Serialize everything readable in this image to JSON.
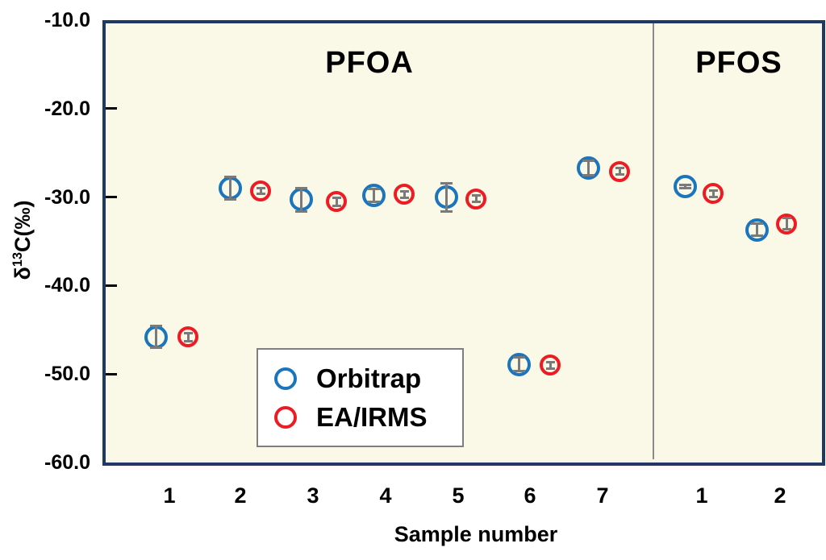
{
  "figure": {
    "background_color": "#FFFFFF",
    "plot_background_color": "#FAF8E6",
    "border_color": "#1F3864",
    "divider_color": "#8A8A8A",
    "error_bar_color": "#7A7A7A",
    "y_axis": {
      "title_prefix": "δ",
      "title_sup": "13",
      "title_suffix": "C(‰)",
      "tick_labels": [
        "-10.0",
        "-20.0",
        "-30.0",
        "-40.0",
        "-50.0",
        "-60.0"
      ],
      "tick_values": [
        -10,
        -20,
        -30,
        -40,
        -50,
        -60
      ]
    },
    "x_axis": {
      "title": "Sample number"
    }
  },
  "chart_data": {
    "type": "scatter",
    "title": "",
    "xlabel": "Sample number",
    "ylabel": "δ13C(‰)",
    "ylim": [
      -60,
      -10
    ],
    "y_ticks": [
      -10,
      -20,
      -30,
      -40,
      -50,
      -60
    ],
    "grid": false,
    "legend_position": "inside lower-left of plot",
    "groups": [
      {
        "name": "PFOA",
        "samples": [
          "1",
          "2",
          "3",
          "4",
          "5",
          "6",
          "7"
        ],
        "series": [
          {
            "name": "Orbitrap",
            "color": "#1B75BC",
            "values": [
              -45.8,
              -29.0,
              -30.3,
              -29.8,
              -30.0,
              -48.9,
              -26.7
            ],
            "errors": [
              1.2,
              1.3,
              1.3,
              0.7,
              1.6,
              0.8,
              0.8
            ]
          },
          {
            "name": "EA/IRMS",
            "color": "#ED1C24",
            "values": [
              -45.8,
              -29.3,
              -30.5,
              -29.7,
              -30.2,
              -49.0,
              -27.1
            ],
            "errors": [
              0.45,
              0.3,
              0.45,
              0.35,
              0.35,
              0.35,
              0.35
            ]
          }
        ]
      },
      {
        "name": "PFOS",
        "samples": [
          "1",
          "2"
        ],
        "series": [
          {
            "name": "Orbitrap",
            "color": "#1B75BC",
            "values": [
              -28.8,
              -33.7
            ],
            "errors": [
              0.15,
              0.7
            ]
          },
          {
            "name": "EA/IRMS",
            "color": "#ED1C24",
            "values": [
              -29.6,
              -33.0
            ],
            "errors": [
              0.35,
              0.6
            ]
          }
        ]
      }
    ]
  }
}
